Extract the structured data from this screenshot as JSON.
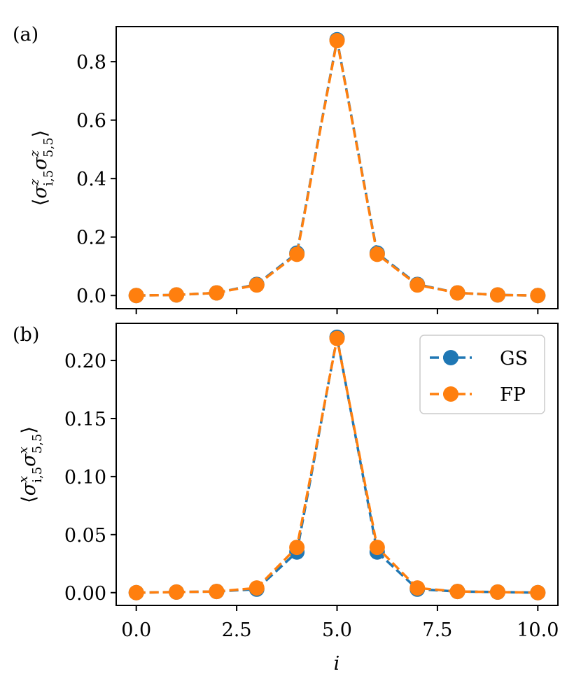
{
  "figure": {
    "xlabel": "i"
  },
  "colors": {
    "gs": "#1f77b4",
    "fp": "#ff7f0e"
  },
  "chart_data": [
    {
      "type": "line",
      "panel_label": "(a)",
      "ylabel": {
        "open": "⟨",
        "s1": "σ",
        "s1_sup": "z",
        "s1_sub": "i,5",
        "s2": "σ",
        "s2_sup": "z",
        "s2_sub": "5,5",
        "close": "⟩"
      },
      "x": [
        0,
        1,
        2,
        3,
        4,
        5,
        6,
        7,
        8,
        9,
        10
      ],
      "xlim": [
        -0.5,
        10.5
      ],
      "ylim": [
        -0.045,
        0.92
      ],
      "xticks": [
        0,
        2.5,
        5,
        7.5,
        10
      ],
      "xtick_labels": [],
      "yticks": [
        0.0,
        0.2,
        0.4,
        0.6,
        0.8
      ],
      "ytick_labels": [
        "0.0",
        "0.2",
        "0.4",
        "0.6",
        "0.8"
      ],
      "legend": false,
      "series": [
        {
          "name": "GS",
          "color": "#1f77b4",
          "values": [
            0.0,
            0.002,
            0.009,
            0.038,
            0.145,
            0.875,
            0.145,
            0.038,
            0.009,
            0.002,
            0.0
          ]
        },
        {
          "name": "FP",
          "color": "#ff7f0e",
          "values": [
            0.0,
            0.002,
            0.009,
            0.036,
            0.141,
            0.872,
            0.141,
            0.036,
            0.009,
            0.002,
            0.0
          ]
        }
      ]
    },
    {
      "type": "line",
      "panel_label": "(b)",
      "ylabel": {
        "open": "⟨",
        "s1": "σ",
        "s1_sup": "x",
        "s1_sub": "i,5",
        "s2": "σ",
        "s2_sup": "x",
        "s2_sub": "5,5",
        "close": "⟩"
      },
      "x": [
        0,
        1,
        2,
        3,
        4,
        5,
        6,
        7,
        8,
        9,
        10
      ],
      "xlim": [
        -0.5,
        10.5
      ],
      "ylim": [
        -0.011,
        0.232
      ],
      "xticks": [
        0,
        2.5,
        5,
        7.5,
        10
      ],
      "xtick_labels": [
        "0.0",
        "2.5",
        "5.0",
        "7.5",
        "10.0"
      ],
      "yticks": [
        0.0,
        0.05,
        0.1,
        0.15,
        0.2
      ],
      "ytick_labels": [
        "0.00",
        "0.05",
        "0.10",
        "0.15",
        "0.20"
      ],
      "legend": true,
      "legend_loc": "top-right",
      "series": [
        {
          "name": "GS",
          "color": "#1f77b4",
          "values": [
            0.0,
            0.0005,
            0.001,
            0.003,
            0.035,
            0.22,
            0.035,
            0.003,
            0.001,
            0.0005,
            0.0
          ]
        },
        {
          "name": "FP",
          "color": "#ff7f0e",
          "values": [
            0.0,
            0.0005,
            0.001,
            0.004,
            0.039,
            0.219,
            0.039,
            0.004,
            0.001,
            0.0005,
            0.0
          ]
        }
      ]
    }
  ]
}
